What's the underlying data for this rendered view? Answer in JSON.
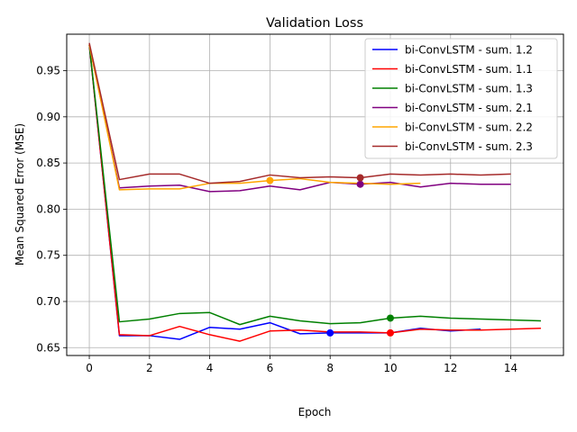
{
  "chart_data": {
    "type": "line",
    "title": "Validation Loss",
    "xlabel": "Epoch",
    "ylabel": "Mean Squared Error (MSE)",
    "xlim": [
      -0.75,
      15.75
    ],
    "ylim": [
      0.6415,
      0.9895
    ],
    "xticks": [
      0,
      2,
      4,
      6,
      8,
      10,
      12,
      14
    ],
    "yticks": [
      0.65,
      0.7,
      0.75,
      0.8,
      0.85,
      0.9,
      0.95
    ],
    "xtick_labels": [
      "0",
      "2",
      "4",
      "6",
      "8",
      "10",
      "12",
      "14"
    ],
    "ytick_labels": [
      "0.65",
      "0.70",
      "0.75",
      "0.80",
      "0.85",
      "0.90",
      "0.95"
    ],
    "grid": true,
    "legend_position": "top-right",
    "series": [
      {
        "name": "bi-ConvLSTM - sum. 1.2",
        "color": "#0000ff",
        "x": [
          0,
          1,
          2,
          3,
          4,
          5,
          6,
          7,
          8,
          9,
          10,
          11,
          12,
          13
        ],
        "y": [
          0.978,
          0.663,
          0.663,
          0.659,
          0.672,
          0.67,
          0.677,
          0.665,
          0.666,
          0.666,
          0.666,
          0.671,
          0.668,
          0.67
        ],
        "marker": {
          "x": 8,
          "y": 0.666
        }
      },
      {
        "name": "bi-ConvLSTM - sum. 1.1",
        "color": "#ff0000",
        "x": [
          0,
          1,
          2,
          3,
          4,
          5,
          6,
          7,
          8,
          9,
          10,
          11,
          12,
          13,
          14,
          15
        ],
        "y": [
          0.978,
          0.664,
          0.663,
          0.673,
          0.664,
          0.657,
          0.668,
          0.669,
          0.667,
          0.667,
          0.666,
          0.67,
          0.669,
          0.669,
          0.67,
          0.671
        ],
        "marker": {
          "x": 10,
          "y": 0.666
        }
      },
      {
        "name": "bi-ConvLSTM - sum. 1.3",
        "color": "#008000",
        "x": [
          0,
          1,
          2,
          3,
          4,
          5,
          6,
          7,
          8,
          9,
          10,
          11,
          12,
          13,
          14,
          15
        ],
        "y": [
          0.978,
          0.678,
          0.681,
          0.687,
          0.688,
          0.675,
          0.684,
          0.679,
          0.676,
          0.677,
          0.682,
          0.684,
          0.682,
          0.681,
          0.68,
          0.679
        ],
        "marker": {
          "x": 10,
          "y": 0.682
        }
      },
      {
        "name": "bi-ConvLSTM - sum. 2.1",
        "color": "#800080",
        "x": [
          0,
          1,
          2,
          3,
          4,
          5,
          6,
          7,
          8,
          9,
          10,
          11,
          12,
          13,
          14
        ],
        "y": [
          0.978,
          0.823,
          0.825,
          0.826,
          0.819,
          0.82,
          0.825,
          0.821,
          0.829,
          0.827,
          0.829,
          0.824,
          0.828,
          0.827,
          0.827
        ],
        "marker": {
          "x": 9,
          "y": 0.827
        }
      },
      {
        "name": "bi-ConvLSTM - sum. 2.2",
        "color": "#ffa500",
        "x": [
          0,
          1,
          2,
          3,
          4,
          5,
          6,
          7,
          8,
          9,
          10,
          11
        ],
        "y": [
          0.978,
          0.821,
          0.822,
          0.822,
          0.828,
          0.828,
          0.831,
          0.833,
          0.829,
          0.828,
          0.827,
          0.828
        ],
        "marker": {
          "x": 6,
          "y": 0.831
        }
      },
      {
        "name": "bi-ConvLSTM - sum. 2.3",
        "color": "#a52a2a",
        "x": [
          0,
          1,
          2,
          3,
          4,
          5,
          6,
          7,
          8,
          9,
          10,
          11,
          12,
          13,
          14
        ],
        "y": [
          0.98,
          0.832,
          0.838,
          0.838,
          0.828,
          0.83,
          0.837,
          0.834,
          0.835,
          0.834,
          0.838,
          0.837,
          0.838,
          0.837,
          0.838
        ],
        "marker": {
          "x": 9,
          "y": 0.834
        }
      }
    ]
  }
}
